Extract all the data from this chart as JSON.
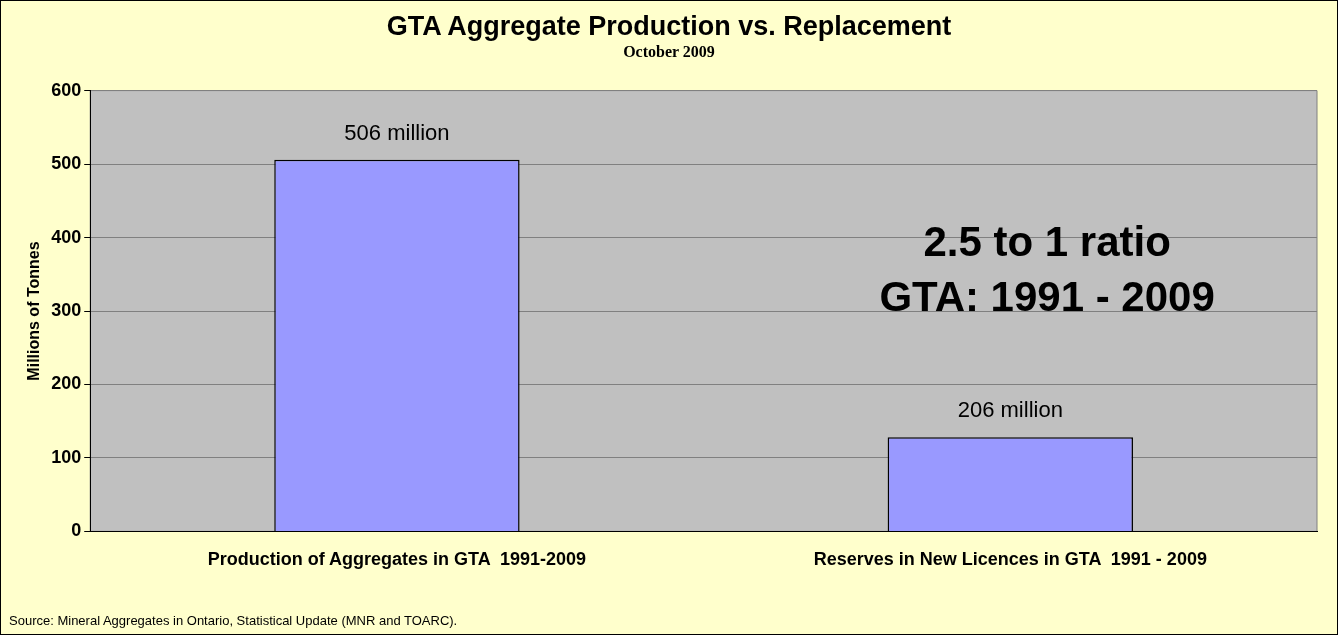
{
  "chart_data": {
    "type": "bar",
    "title": "GTA Aggregate Production vs. Replacement",
    "subtitle": "October 2009",
    "ylabel": "Millions of Tonnes",
    "categories": [
      "Production of Aggregates in GTA  1991-2009",
      "Reserves in New Licences in GTA  1991 - 2009"
    ],
    "values": [
      506,
      128
    ],
    "value_labels": [
      "506 million",
      null
    ],
    "color": "#9999ff",
    "ylim": [
      0,
      600
    ],
    "yticks": [
      0,
      100,
      200,
      300,
      400,
      500,
      600
    ],
    "grid": "y",
    "legend": false,
    "annotations": [
      {
        "text": "206 million",
        "x": "Reserves in New Licences in GTA  1991 - 2009",
        "y": 128
      },
      "2.5 to 1 ratio",
      "GTA: 1991 - 2009",
      "Source: Mineral Aggregates in Ontario, Statistical Update (MNR and TOARC)."
    ]
  }
}
